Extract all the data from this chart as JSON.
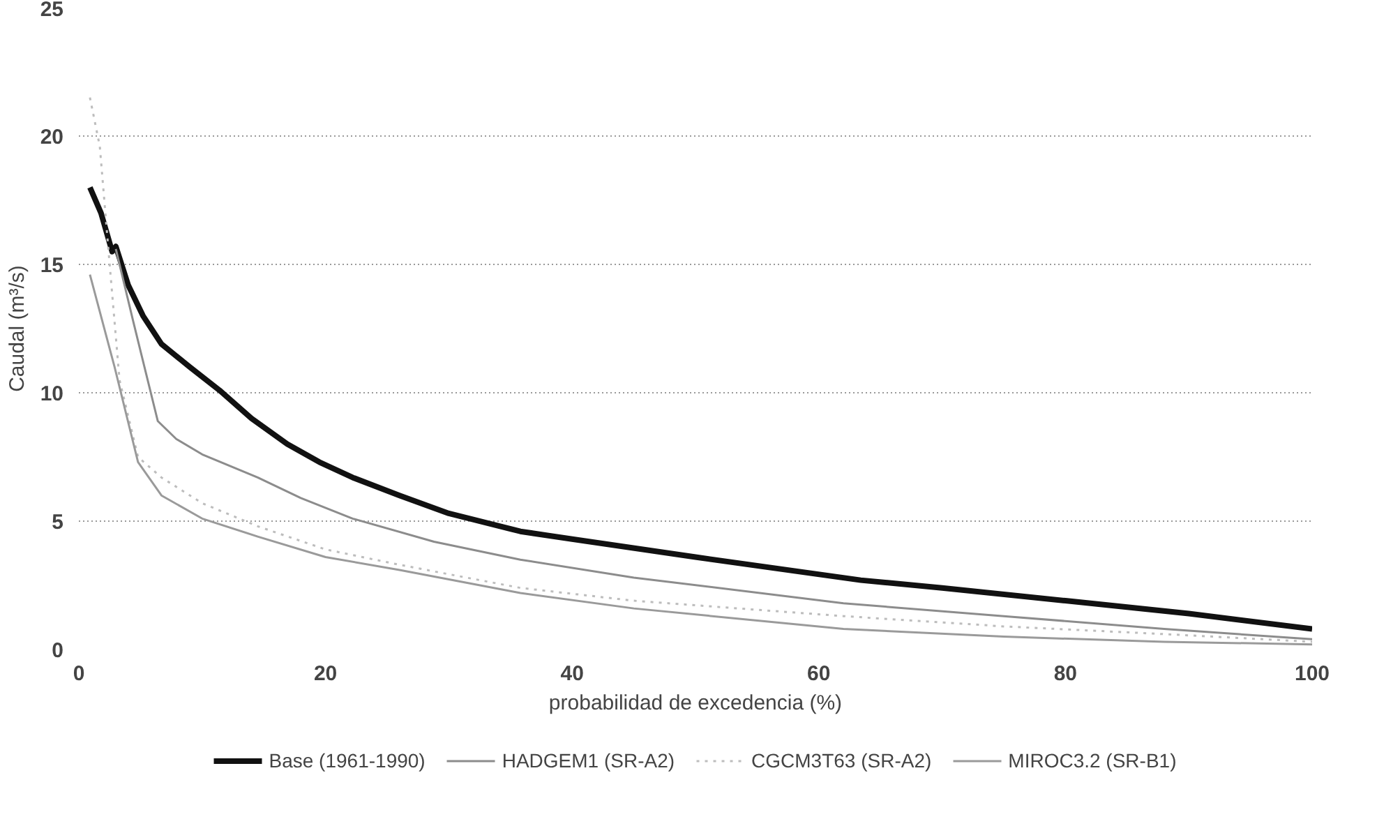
{
  "chart_data": {
    "type": "line",
    "xlabel": "probabilidad de excedencia (%)",
    "ylabel": "Caudal (m³/s)",
    "xlim": [
      0,
      100
    ],
    "xticks": [
      0,
      20,
      40,
      60,
      80,
      100
    ],
    "ylim": [
      0,
      25
    ],
    "yticks": [
      0,
      5,
      10,
      15,
      20,
      25
    ],
    "grid": "y",
    "legend": "bottom",
    "marker": "none",
    "series": [
      {
        "name": "Base (1961-1990)",
        "color": "#111111",
        "line_style": "solid",
        "x": [
          0.9,
          1.8,
          2.7,
          3.0,
          4.0,
          5.2,
          6.7,
          9,
          11.4,
          14,
          16.9,
          19.5,
          22.2,
          26,
          30,
          35.8,
          40,
          50,
          63.4,
          70,
          80,
          90,
          100
        ],
        "values": [
          18.0,
          17.0,
          15.5,
          15.7,
          14.2,
          13.0,
          11.9,
          11.0,
          10.1,
          9.0,
          8.0,
          7.3,
          6.7,
          6.0,
          5.3,
          4.6,
          4.3,
          3.6,
          2.7,
          2.4,
          1.9,
          1.4,
          0.8
        ]
      },
      {
        "name": "HADGEM1 (SR-A2)",
        "color": "#8c8c8c",
        "line_style": "solid",
        "x": [
          3.0,
          4.4,
          6.4,
          7.9,
          10,
          14.5,
          18,
          22.2,
          28.8,
          35.8,
          45,
          62,
          75,
          88,
          100
        ],
        "values": [
          15.6,
          12.8,
          8.9,
          8.2,
          7.6,
          6.7,
          5.9,
          5.1,
          4.2,
          3.5,
          2.8,
          1.8,
          1.3,
          0.8,
          0.4
        ]
      },
      {
        "name": "CGCM3T63 (SR-A2)",
        "color": "#bdbdbd",
        "line_style": "dotted",
        "x": [
          0.9,
          1.7,
          2.5,
          3.3,
          4.8,
          6.7,
          10,
          14.5,
          20,
          26,
          35.8,
          45,
          62,
          75,
          88,
          100
        ],
        "values": [
          21.5,
          19.6,
          15.0,
          10.5,
          7.5,
          6.7,
          5.7,
          4.8,
          3.9,
          3.3,
          2.4,
          1.9,
          1.3,
          0.9,
          0.6,
          0.3
        ]
      },
      {
        "name": "MIROC3.2 (SR-B1)",
        "color": "#9a9a9a",
        "line_style": "solid",
        "x": [
          0.9,
          2.9,
          4.8,
          6.7,
          10,
          14.5,
          20,
          26,
          35.8,
          45,
          62,
          75,
          88,
          100
        ],
        "values": [
          14.6,
          11.0,
          7.3,
          6.0,
          5.1,
          4.4,
          3.6,
          3.1,
          2.2,
          1.6,
          0.8,
          0.5,
          0.3,
          0.2
        ]
      }
    ]
  }
}
